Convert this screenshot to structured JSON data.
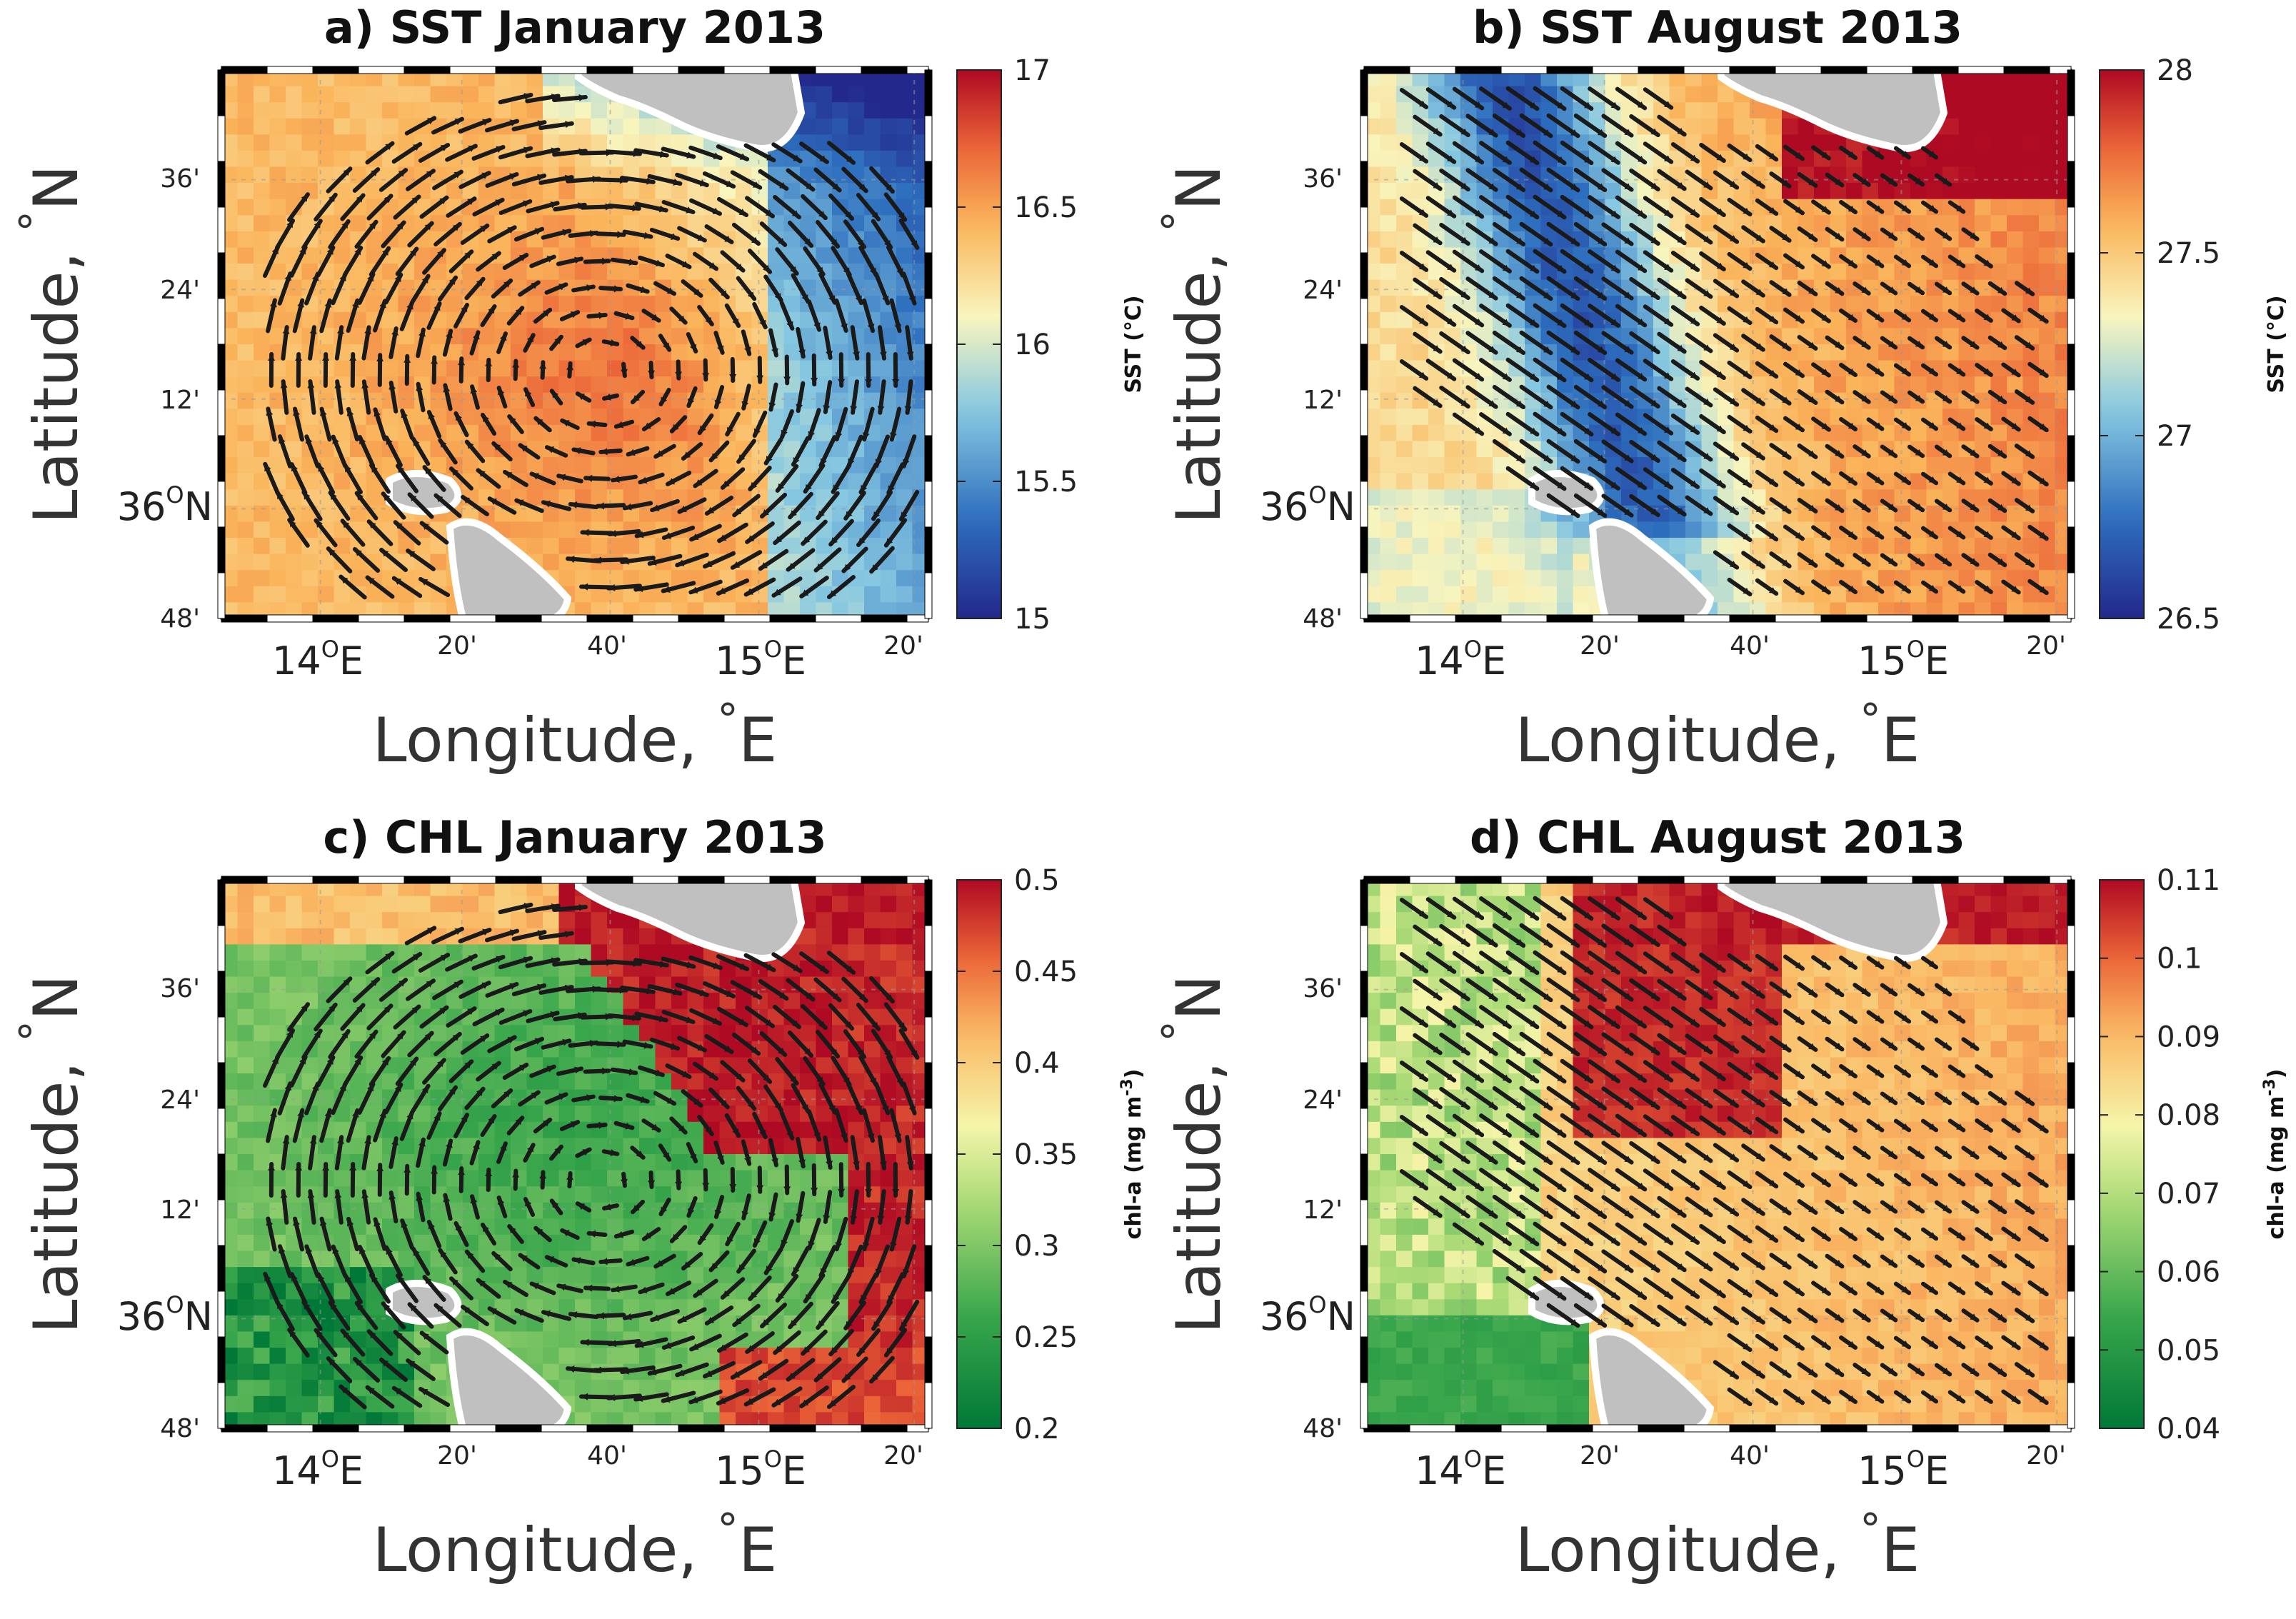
{
  "panels": [
    {
      "id": "a",
      "title": "a) SST January 2013",
      "ylabel": "Latitude,",
      "ylabel_unit": "N",
      "xlabel": "Longitude,",
      "xlabel_unit": "E",
      "lat_ticks": [
        "36'",
        "24'",
        "12'",
        "36",
        "N",
        "48'"
      ],
      "lon_ticks": [
        "14",
        "E",
        "20'",
        "40'",
        "15",
        "E",
        "20'"
      ],
      "degree_symbol": "°",
      "deg_sup": "O",
      "colorbar": {
        "label": "SST (°C)",
        "ticks": [
          "17",
          "16.5",
          "16",
          "15.5",
          "15"
        ]
      },
      "palette": "sst",
      "field": "sst_jan",
      "flow": "eddy"
    },
    {
      "id": "b",
      "title": "b) SST August 2013",
      "ylabel": "Latitude,",
      "ylabel_unit": "N",
      "xlabel": "Longitude,",
      "xlabel_unit": "E",
      "lat_ticks": [
        "36'",
        "24'",
        "12'",
        "36",
        "N",
        "48'"
      ],
      "lon_ticks": [
        "14",
        "E",
        "20'",
        "40'",
        "15",
        "E",
        "20'"
      ],
      "degree_symbol": "°",
      "deg_sup": "O",
      "colorbar": {
        "label": "SST (°C)",
        "ticks": [
          "28",
          "27.5",
          "27",
          "26.5"
        ]
      },
      "palette": "sst",
      "field": "sst_aug",
      "flow": "southeast"
    },
    {
      "id": "c",
      "title": "c) CHL January  2013",
      "ylabel": "Latitude,",
      "ylabel_unit": "N",
      "xlabel": "Longitude,",
      "xlabel_unit": "E",
      "lat_ticks": [
        "36'",
        "24'",
        "12'",
        "36",
        "N",
        "48'"
      ],
      "lon_ticks": [
        "14",
        "E",
        "20'",
        "40'",
        "15",
        "E",
        "20'"
      ],
      "degree_symbol": "°",
      "deg_sup": "O",
      "colorbar": {
        "label": "chl-a (mg m",
        "label_sup": "-3",
        "label_end": ")",
        "ticks": [
          "0.5",
          "0.45",
          "0.4",
          "0.35",
          "0.3",
          "0.25",
          "0.2"
        ]
      },
      "palette": "chl",
      "field": "chl_jan",
      "flow": "eddy"
    },
    {
      "id": "d",
      "title": "d) CHL August 2013",
      "ylabel": "Latitude,",
      "ylabel_unit": "N",
      "xlabel": "Longitude,",
      "xlabel_unit": "E",
      "lat_ticks": [
        "36'",
        "24'",
        "12'",
        "36",
        "N",
        "48'"
      ],
      "lon_ticks": [
        "14",
        "E",
        "20'",
        "40'",
        "15",
        "E",
        "20'"
      ],
      "degree_symbol": "°",
      "deg_sup": "O",
      "colorbar": {
        "label": "chl-a (mg m",
        "label_sup": "-3",
        "label_end": ")",
        "ticks": [
          "0.11",
          "0.1",
          "0.09",
          "0.08",
          "0.07",
          "0.06",
          "0.05",
          "0.04"
        ]
      },
      "palette": "chl",
      "field": "chl_aug",
      "flow": "southeast"
    }
  ]
}
